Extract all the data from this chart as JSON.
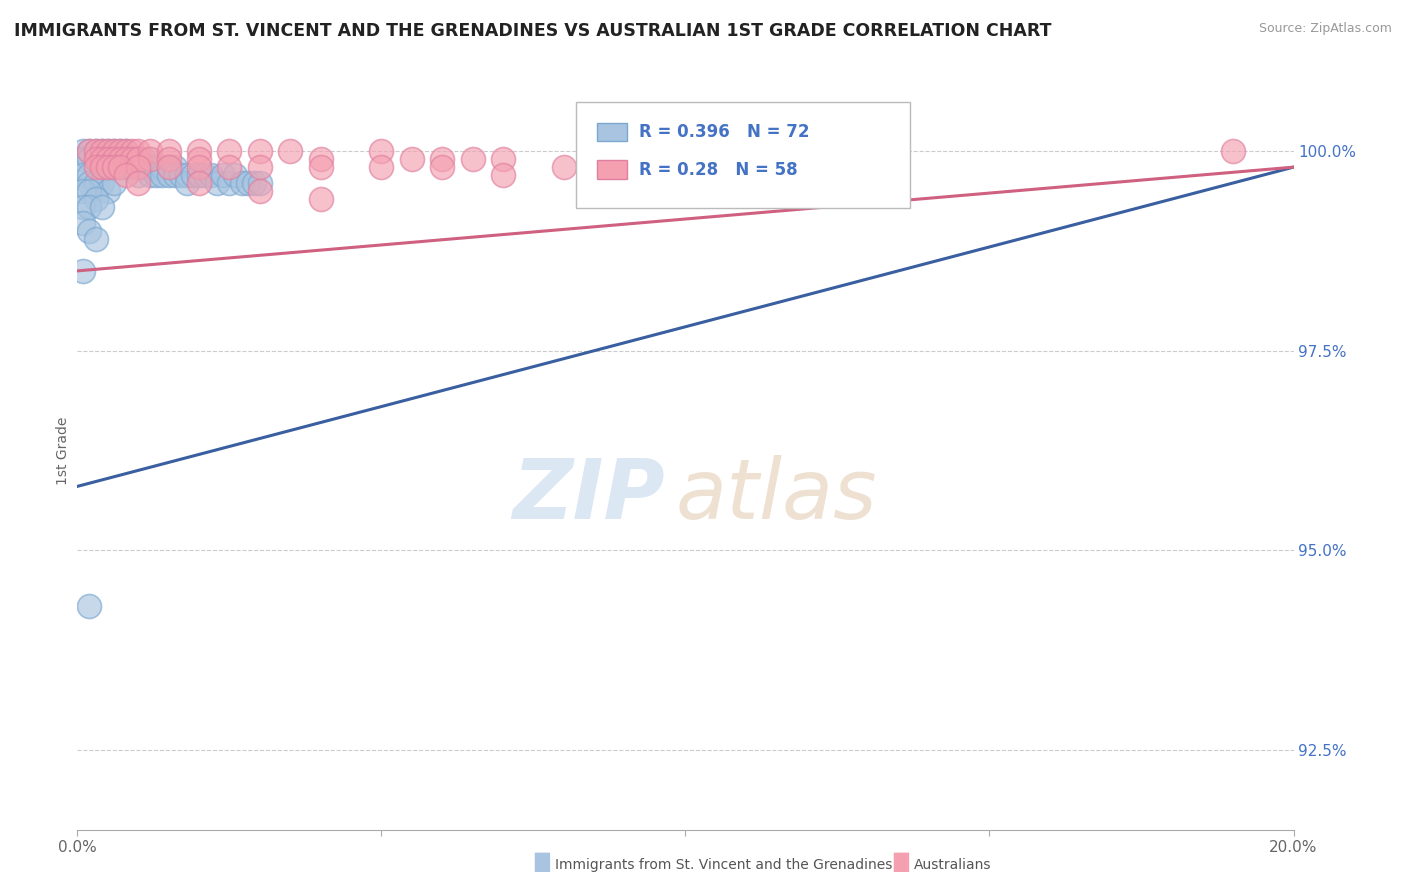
{
  "title": "IMMIGRANTS FROM ST. VINCENT AND THE GRENADINES VS AUSTRALIAN 1ST GRADE CORRELATION CHART",
  "source": "Source: ZipAtlas.com",
  "ylabel": "1st Grade",
  "xlim": [
    0.0,
    0.2
  ],
  "ylim": [
    0.915,
    1.01
  ],
  "ytick_positions": [
    0.925,
    0.95,
    0.975,
    1.0
  ],
  "ytick_labels": [
    "92.5%",
    "95.0%",
    "97.5%",
    "100.0%"
  ],
  "blue_R": 0.396,
  "blue_N": 72,
  "pink_R": 0.28,
  "pink_N": 58,
  "blue_color": "#a8c4e0",
  "pink_color": "#f4a0b0",
  "blue_edge_color": "#7ba8d0",
  "pink_edge_color": "#e080a0",
  "blue_line_color": "#3a5fa0",
  "pink_line_color": "#d06080",
  "legend_label_blue": "Immigrants from St. Vincent and the Grenadines",
  "legend_label_pink": "Australians",
  "blue_line_x": [
    0.0,
    0.2
  ],
  "blue_line_y": [
    0.958,
    0.998
  ],
  "pink_line_x": [
    0.0,
    0.2
  ],
  "pink_line_y": [
    0.985,
    0.998
  ],
  "blue_points": [
    [
      0.001,
      1.0
    ],
    [
      0.002,
      1.0
    ],
    [
      0.003,
      1.0
    ],
    [
      0.004,
      1.0
    ],
    [
      0.005,
      1.0
    ],
    [
      0.003,
      0.999
    ],
    [
      0.004,
      0.999
    ],
    [
      0.005,
      0.999
    ],
    [
      0.006,
      1.0
    ],
    [
      0.006,
      0.999
    ],
    [
      0.007,
      1.0
    ],
    [
      0.007,
      0.999
    ],
    [
      0.008,
      1.0
    ],
    [
      0.008,
      0.999
    ],
    [
      0.001,
      0.999
    ],
    [
      0.002,
      0.999
    ],
    [
      0.003,
      0.998
    ],
    [
      0.004,
      0.998
    ],
    [
      0.005,
      0.998
    ],
    [
      0.006,
      0.998
    ],
    [
      0.007,
      0.998
    ],
    [
      0.008,
      0.998
    ],
    [
      0.009,
      0.999
    ],
    [
      0.009,
      0.998
    ],
    [
      0.01,
      0.999
    ],
    [
      0.01,
      0.998
    ],
    [
      0.01,
      0.997
    ],
    [
      0.011,
      0.999
    ],
    [
      0.011,
      0.998
    ],
    [
      0.012,
      0.998
    ],
    [
      0.012,
      0.997
    ],
    [
      0.013,
      0.998
    ],
    [
      0.013,
      0.997
    ],
    [
      0.014,
      0.998
    ],
    [
      0.014,
      0.997
    ],
    [
      0.015,
      0.998
    ],
    [
      0.015,
      0.997
    ],
    [
      0.016,
      0.998
    ],
    [
      0.016,
      0.997
    ],
    [
      0.017,
      0.997
    ],
    [
      0.018,
      0.997
    ],
    [
      0.018,
      0.996
    ],
    [
      0.019,
      0.997
    ],
    [
      0.02,
      0.997
    ],
    [
      0.021,
      0.997
    ],
    [
      0.022,
      0.997
    ],
    [
      0.023,
      0.996
    ],
    [
      0.024,
      0.997
    ],
    [
      0.025,
      0.996
    ],
    [
      0.026,
      0.997
    ],
    [
      0.027,
      0.996
    ],
    [
      0.028,
      0.996
    ],
    [
      0.029,
      0.996
    ],
    [
      0.03,
      0.996
    ],
    [
      0.001,
      0.997
    ],
    [
      0.002,
      0.997
    ],
    [
      0.002,
      0.996
    ],
    [
      0.003,
      0.996
    ],
    [
      0.004,
      0.996
    ],
    [
      0.005,
      0.995
    ],
    [
      0.006,
      0.996
    ],
    [
      0.001,
      0.995
    ],
    [
      0.002,
      0.995
    ],
    [
      0.003,
      0.994
    ],
    [
      0.001,
      0.993
    ],
    [
      0.002,
      0.993
    ],
    [
      0.004,
      0.993
    ],
    [
      0.001,
      0.991
    ],
    [
      0.002,
      0.99
    ],
    [
      0.003,
      0.989
    ],
    [
      0.001,
      0.985
    ],
    [
      0.002,
      0.943
    ]
  ],
  "pink_points": [
    [
      0.002,
      1.0
    ],
    [
      0.003,
      1.0
    ],
    [
      0.004,
      1.0
    ],
    [
      0.005,
      1.0
    ],
    [
      0.006,
      1.0
    ],
    [
      0.007,
      1.0
    ],
    [
      0.008,
      1.0
    ],
    [
      0.009,
      1.0
    ],
    [
      0.01,
      1.0
    ],
    [
      0.003,
      0.999
    ],
    [
      0.004,
      0.999
    ],
    [
      0.005,
      0.999
    ],
    [
      0.006,
      0.999
    ],
    [
      0.007,
      0.999
    ],
    [
      0.008,
      0.999
    ],
    [
      0.009,
      0.999
    ],
    [
      0.01,
      0.999
    ],
    [
      0.012,
      1.0
    ],
    [
      0.012,
      0.999
    ],
    [
      0.015,
      1.0
    ],
    [
      0.015,
      0.999
    ],
    [
      0.02,
      1.0
    ],
    [
      0.02,
      0.999
    ],
    [
      0.025,
      1.0
    ],
    [
      0.03,
      1.0
    ],
    [
      0.035,
      1.0
    ],
    [
      0.04,
      0.999
    ],
    [
      0.05,
      1.0
    ],
    [
      0.055,
      0.999
    ],
    [
      0.06,
      0.999
    ],
    [
      0.065,
      0.999
    ],
    [
      0.07,
      0.999
    ],
    [
      0.003,
      0.998
    ],
    [
      0.004,
      0.998
    ],
    [
      0.005,
      0.998
    ],
    [
      0.006,
      0.998
    ],
    [
      0.007,
      0.998
    ],
    [
      0.01,
      0.998
    ],
    [
      0.015,
      0.998
    ],
    [
      0.02,
      0.998
    ],
    [
      0.025,
      0.998
    ],
    [
      0.03,
      0.998
    ],
    [
      0.04,
      0.998
    ],
    [
      0.05,
      0.998
    ],
    [
      0.06,
      0.998
    ],
    [
      0.07,
      0.997
    ],
    [
      0.08,
      0.998
    ],
    [
      0.09,
      0.997
    ],
    [
      0.1,
      0.997
    ],
    [
      0.11,
      0.997
    ],
    [
      0.12,
      0.997
    ],
    [
      0.13,
      0.997
    ],
    [
      0.008,
      0.997
    ],
    [
      0.01,
      0.996
    ],
    [
      0.02,
      0.996
    ],
    [
      0.03,
      0.995
    ],
    [
      0.04,
      0.994
    ],
    [
      0.19,
      1.0
    ]
  ]
}
